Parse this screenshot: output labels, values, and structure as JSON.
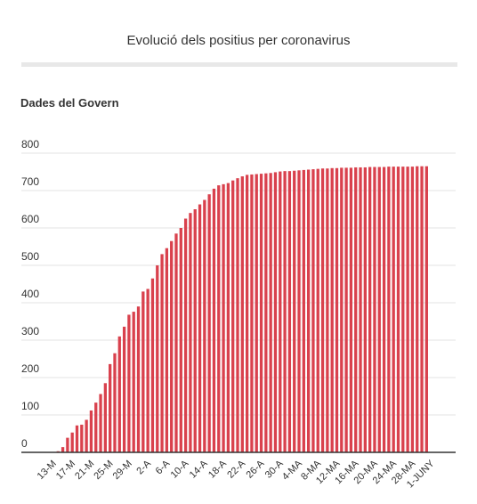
{
  "header": {
    "title": "Evolució dels positius per coronavirus",
    "subtitle": "Dades del Govern"
  },
  "colors": {
    "bar": "#d9414d",
    "grid": "#e3e3e3",
    "axis": "#333333",
    "text": "#333333"
  },
  "chart_data": {
    "type": "bar",
    "title": "Evolució dels positius per coronavirus",
    "subtitle": "Dades del Govern",
    "xlabel": "",
    "ylabel": "",
    "ylim": [
      0,
      800
    ],
    "yticks": [
      0,
      100,
      200,
      300,
      400,
      500,
      600,
      700,
      800
    ],
    "grid": true,
    "legend": "none",
    "categories": [
      "13-M",
      "14-M",
      "15-M",
      "16-M",
      "17-M",
      "18-M",
      "19-M",
      "20-M",
      "21-M",
      "22-M",
      "23-M",
      "24-M",
      "25-M",
      "26-M",
      "27-M",
      "28-M",
      "29-M",
      "30-M",
      "31-M",
      "1-A",
      "2-A",
      "3-A",
      "4-A",
      "5-A",
      "6-A",
      "7-A",
      "8-A",
      "9-A",
      "10-A",
      "11-A",
      "12-A",
      "13-A",
      "14-A",
      "15-A",
      "16-A",
      "17-A",
      "18-A",
      "19-A",
      "20-A",
      "21-A",
      "22-A",
      "23-A",
      "24-A",
      "25-A",
      "26-A",
      "27-A",
      "28-A",
      "29-A",
      "30-A",
      "1-MA",
      "2-MA",
      "3-MA",
      "4-MA",
      "5-MA",
      "6-MA",
      "7-MA",
      "8-MA",
      "9-MA",
      "10-MA",
      "11-MA",
      "12-MA",
      "13-MA",
      "14-MA",
      "15-MA",
      "16-MA",
      "17-MA",
      "18-MA",
      "19-MA",
      "20-MA",
      "21-MA",
      "22-MA",
      "23-MA",
      "24-MA",
      "25-MA",
      "26-MA",
      "27-MA",
      "28-MA",
      "29-MA",
      "30-MA",
      "31-MA",
      "1-JUNY"
    ],
    "tick_labels": [
      "13-M",
      "17-M",
      "21-M",
      "25-M",
      "29-M",
      "2-A",
      "6-A",
      "10-A",
      "14-A",
      "18-A",
      "22-A",
      "26-A",
      "30-A",
      "4-MA",
      "8-MA",
      "12-MA",
      "16-MA",
      "20-MA",
      "24-MA",
      "28-MA",
      "1-JUNY"
    ],
    "values": [
      1,
      1,
      3,
      14,
      39,
      53,
      72,
      74,
      87,
      112,
      133,
      156,
      185,
      236,
      265,
      310,
      336,
      368,
      376,
      390,
      430,
      437,
      465,
      500,
      530,
      546,
      565,
      585,
      600,
      625,
      640,
      650,
      663,
      675,
      690,
      705,
      714,
      717,
      720,
      727,
      733,
      738,
      742,
      743,
      744,
      745,
      746,
      747,
      749,
      751,
      752,
      752,
      753,
      754,
      755,
      756,
      757,
      758,
      759,
      759,
      760,
      760,
      761,
      761,
      761,
      762,
      762,
      762,
      763,
      763,
      763,
      763,
      764,
      764,
      764,
      764,
      764,
      764,
      765,
      765,
      765
    ]
  }
}
